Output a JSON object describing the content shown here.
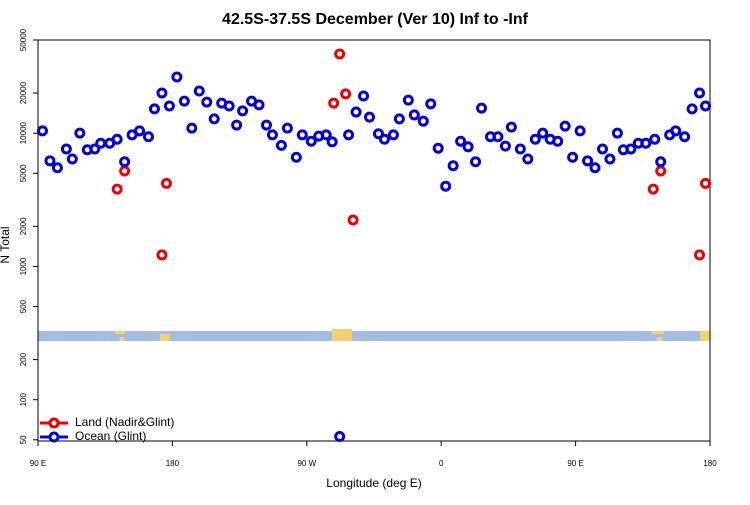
{
  "chart_data": {
    "type": "scatter",
    "title": "42.5S-37.5S December (Ver 10)   Inf to -Inf",
    "xlabel": "Longitude (deg E)",
    "ylabel": "N Total",
    "xlim": [
      90,
      540
    ],
    "xticks": [
      {
        "value": 90,
        "label": "90 E"
      },
      180,
      {
        "value": 270,
        "label": "90 W"
      },
      {
        "value": 360,
        "label": "0"
      },
      {
        "value": 450,
        "label": "90 E"
      },
      180
    ],
    "ylim": [
      49,
      50000
    ],
    "ylog": true,
    "yticks": [
      50,
      100,
      200,
      500,
      1000,
      2000,
      5000,
      10000,
      20000,
      50000
    ],
    "legend": "bottom-left",
    "series": [
      {
        "name": "Land (Nadir&Glint)",
        "color": "#ee0000",
        "x": [
          143,
          148,
          173,
          176,
          288,
          292,
          296,
          301,
          502,
          507,
          533,
          537
        ],
        "values": [
          3800,
          5200,
          1220,
          4200,
          16800,
          39300,
          19700,
          2230,
          3800,
          5200,
          1220,
          4200
        ]
      },
      {
        "name": "Ocean (Glint)",
        "color": "#0000dd",
        "x": [
          93,
          98,
          103,
          109,
          113,
          118,
          123,
          128,
          132,
          138,
          143,
          148,
          153,
          158,
          164,
          168,
          173,
          178,
          183,
          188,
          193,
          198,
          203,
          208,
          213,
          218,
          223,
          227,
          233,
          238,
          243,
          247,
          253,
          257,
          263,
          267,
          273,
          278,
          283,
          287,
          292,
          298,
          303,
          308,
          312,
          318,
          322,
          328,
          332,
          338,
          342,
          348,
          353,
          358,
          363,
          368,
          373,
          378,
          383,
          387,
          393,
          398,
          403,
          407,
          413,
          418,
          423,
          428,
          433,
          438,
          443,
          448,
          453,
          458,
          463,
          468,
          473,
          478,
          482,
          487,
          492,
          497,
          503,
          507,
          513,
          517,
          523,
          528,
          533,
          537
        ],
        "values": [
          10400,
          6200,
          5500,
          7600,
          6400,
          10000,
          7500,
          7600,
          8400,
          8400,
          9000,
          6100,
          9700,
          10400,
          9400,
          15200,
          20000,
          16000,
          26400,
          17400,
          10900,
          20700,
          17100,
          12800,
          16800,
          16000,
          11500,
          14700,
          17400,
          16300,
          11500,
          9700,
          8100,
          10900,
          6600,
          9700,
          8700,
          9500,
          9700,
          8600,
          53,
          9700,
          14400,
          19000,
          13200,
          9900,
          9000,
          9700,
          12800,
          17700,
          13700,
          12300,
          16600,
          7700,
          4000,
          5700,
          8700,
          7900,
          6100,
          15400,
          9400,
          9400,
          8000,
          11100,
          7600,
          6400,
          9000,
          10000,
          9000,
          8700,
          11300,
          6600,
          10400,
          6200,
          5500,
          7600,
          6400,
          10000,
          7500,
          7600,
          8400,
          8400,
          9000,
          6100,
          9700,
          10400,
          9400,
          15200,
          20000,
          16000
        ]
      }
    ]
  }
}
